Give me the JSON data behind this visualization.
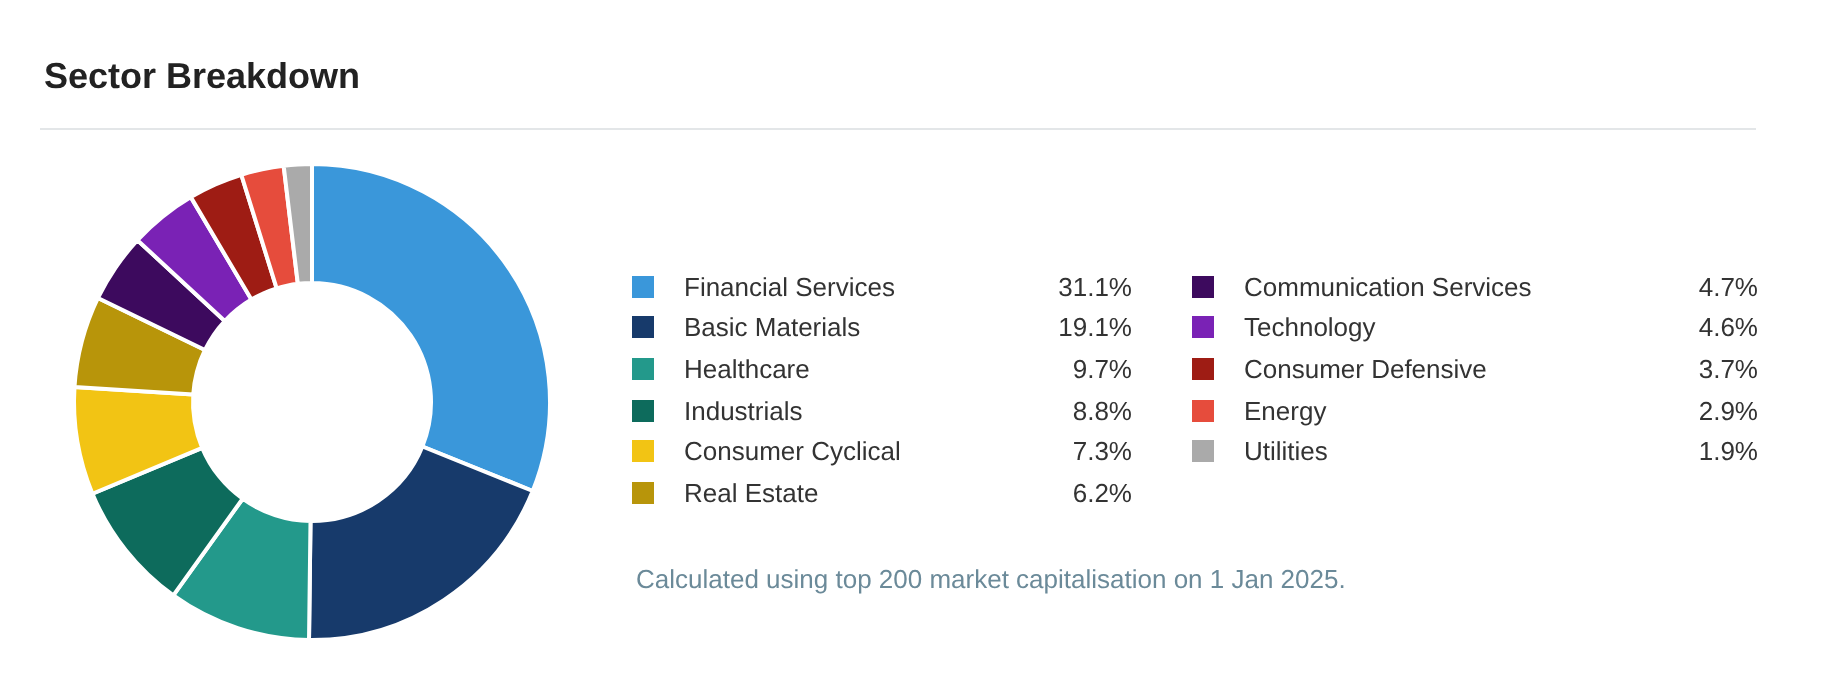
{
  "chart_data": {
    "type": "donut",
    "title": "Sector Breakdown",
    "categories": [
      "Financial Services",
      "Basic Materials",
      "Healthcare",
      "Industrials",
      "Consumer Cyclical",
      "Real Estate",
      "Communication Services",
      "Technology",
      "Consumer Defensive",
      "Energy",
      "Utilities"
    ],
    "values": [
      31.1,
      19.1,
      9.7,
      8.8,
      7.3,
      6.2,
      4.7,
      4.6,
      3.7,
      2.9,
      1.9
    ],
    "colors": [
      "#3a97da",
      "#173a6b",
      "#23998b",
      "#0d6b5c",
      "#f2c414",
      "#b8950a",
      "#3d0a5e",
      "#7a22b5",
      "#9e1c14",
      "#e64c3c",
      "#aaaaaa"
    ],
    "value_labels": [
      "31.1%",
      "19.1%",
      "9.7%",
      "8.8%",
      "7.3%",
      "6.2%",
      "4.7%",
      "4.6%",
      "3.7%",
      "2.9%",
      "1.9%"
    ],
    "legend": "right",
    "annotations": [
      "Calculated using top 200 market capitalisation on 1 Jan 2025."
    ]
  }
}
